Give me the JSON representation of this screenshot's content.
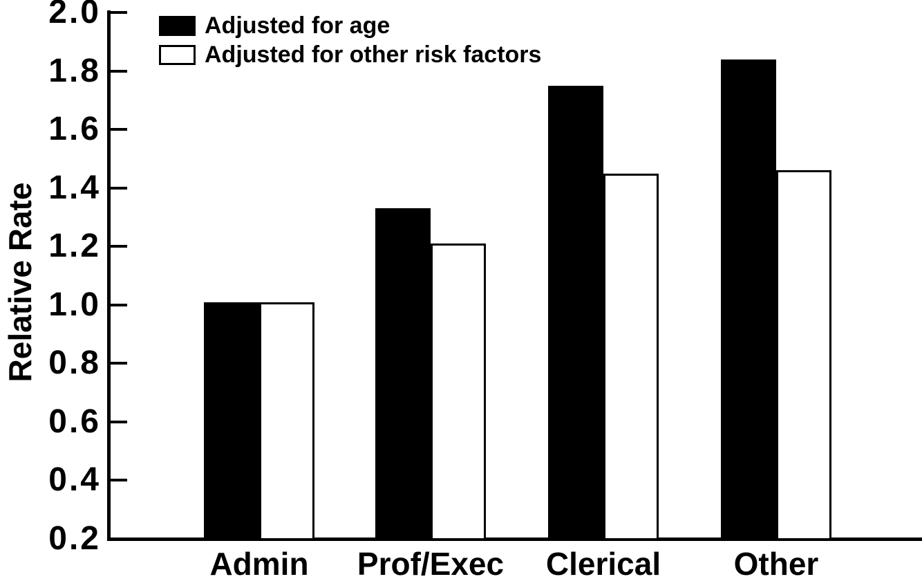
{
  "chart_data": {
    "type": "bar",
    "title": "",
    "xlabel": "",
    "ylabel": "Relative Rate",
    "categories": [
      "Admin",
      "Prof/Exec",
      "Clerical",
      "Other"
    ],
    "series": [
      {
        "name": "Adjusted for age",
        "style": "filled",
        "color": "#000000",
        "values": [
          1.01,
          1.33,
          1.75,
          1.84
        ]
      },
      {
        "name": "Adjusted for other risk factors",
        "style": "open",
        "color": "#ffffff",
        "values": [
          1.01,
          1.21,
          1.45,
          1.46
        ]
      }
    ],
    "ylim": [
      0.2,
      2.0
    ],
    "yticks": [
      2.0,
      1.8,
      1.6,
      1.4,
      1.2,
      1.0,
      0.8,
      0.6,
      0.4,
      0.2
    ],
    "ytick_format_decimals": 1,
    "bar_baseline": 0.2,
    "grid": false,
    "legend_position": "top-left"
  },
  "colors": {
    "foreground": "#000000",
    "background": "#ffffff"
  }
}
